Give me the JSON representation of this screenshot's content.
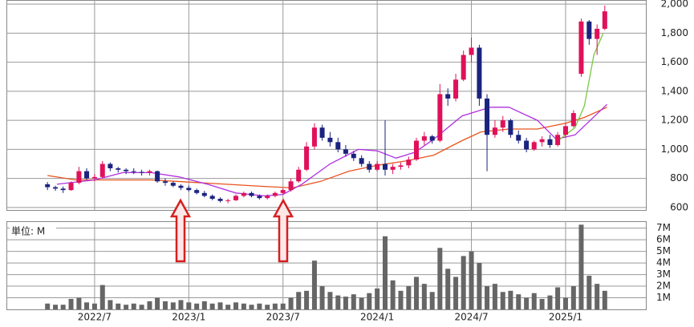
{
  "chart_data": {
    "type": "candlestick",
    "xlim": [
      2022.032,
      2025.426
    ],
    "xticks": [
      {
        "value": 2022.5,
        "label": "2022/7"
      },
      {
        "value": 2023.0,
        "label": "2023/1"
      },
      {
        "value": 2023.5,
        "label": "2023/7"
      },
      {
        "value": 2024.0,
        "label": "2024/1"
      },
      {
        "value": 2024.5,
        "label": "2024/7"
      },
      {
        "value": 2025.0,
        "label": "2025/1"
      }
    ],
    "ylim": [
      583,
      2028
    ],
    "yticks": [
      600,
      800,
      {
        "value": 1000,
        "label": "1,000"
      },
      {
        "value": 1200,
        "label": "1,200"
      },
      {
        "value": 1400,
        "label": "1,400"
      },
      {
        "value": 1600,
        "label": "1,600"
      },
      {
        "value": 1800,
        "label": "1,800"
      },
      {
        "value": 2000,
        "label": "2,000"
      }
    ],
    "grid": true,
    "up_color": "#e0105a",
    "down_color": "#1a237e",
    "x": [
      2022.25,
      2022.292,
      2022.333,
      2022.375,
      2022.417,
      2022.458,
      2022.5,
      2022.542,
      2022.583,
      2022.625,
      2022.667,
      2022.708,
      2022.75,
      2022.792,
      2022.833,
      2022.875,
      2022.917,
      2022.958,
      2023.0,
      2023.042,
      2023.083,
      2023.125,
      2023.167,
      2023.208,
      2023.25,
      2023.292,
      2023.333,
      2023.375,
      2023.417,
      2023.458,
      2023.5,
      2023.542,
      2023.583,
      2023.625,
      2023.667,
      2023.708,
      2023.75,
      2023.792,
      2023.833,
      2023.875,
      2023.917,
      2023.958,
      2024.0,
      2024.042,
      2024.083,
      2024.125,
      2024.167,
      2024.208,
      2024.25,
      2024.292,
      2024.333,
      2024.375,
      2024.417,
      2024.458,
      2024.5,
      2024.542,
      2024.583,
      2024.625,
      2024.667,
      2024.708,
      2024.75,
      2024.792,
      2024.833,
      2024.875,
      2024.917,
      2024.958,
      2025.0,
      2025.042,
      2025.083,
      2025.125,
      2025.167,
      2025.208
    ],
    "open": [
      760,
      740,
      730,
      720,
      770,
      850,
      800,
      810,
      900,
      870,
      860,
      850,
      845,
      840,
      850,
      780,
      770,
      750,
      735,
      720,
      700,
      680,
      660,
      645,
      650,
      680,
      700,
      680,
      665,
      680,
      700,
      720,
      780,
      860,
      1020,
      1150,
      1080,
      1050,
      1000,
      970,
      940,
      900,
      860,
      900,
      860,
      880,
      890,
      930,
      1060,
      1090,
      1060,
      1380,
      1350,
      1480,
      1650,
      1700,
      1350,
      1100,
      1150,
      1200,
      1100,
      1060,
      1000,
      1050,
      1070,
      1030,
      1100,
      1160,
      1520,
      1880,
      1760,
      1830
    ],
    "high": [
      775,
      750,
      745,
      780,
      880,
      870,
      830,
      920,
      910,
      880,
      870,
      870,
      860,
      860,
      855,
      800,
      780,
      760,
      750,
      730,
      715,
      690,
      670,
      660,
      690,
      710,
      710,
      690,
      690,
      710,
      730,
      800,
      880,
      1050,
      1180,
      1170,
      1120,
      1080,
      1030,
      990,
      960,
      920,
      920,
      1200,
      900,
      910,
      950,
      1080,
      1120,
      1100,
      1450,
      1420,
      1520,
      1680,
      1770,
      1720,
      1380,
      1200,
      1230,
      1210,
      1130,
      1080,
      1060,
      1090,
      1100,
      1120,
      1180,
      1270,
      1900,
      1890,
      1860,
      1990
    ],
    "low": [
      720,
      715,
      700,
      715,
      760,
      790,
      780,
      800,
      850,
      840,
      830,
      830,
      820,
      820,
      770,
      750,
      740,
      720,
      710,
      690,
      670,
      650,
      635,
      630,
      645,
      670,
      670,
      655,
      655,
      670,
      690,
      710,
      770,
      850,
      1000,
      1060,
      1020,
      980,
      950,
      920,
      880,
      840,
      850,
      820,
      830,
      860,
      870,
      920,
      1030,
      1040,
      1050,
      1300,
      1330,
      1470,
      1600,
      1300,
      850,
      1080,
      1120,
      1080,
      1040,
      980,
      990,
      1020,
      1010,
      1020,
      1080,
      1150,
      1500,
      1720,
      1650,
      1820
    ],
    "close": [
      740,
      730,
      720,
      770,
      850,
      800,
      810,
      900,
      870,
      860,
      850,
      845,
      840,
      850,
      780,
      770,
      750,
      735,
      720,
      700,
      680,
      660,
      645,
      650,
      680,
      700,
      680,
      665,
      680,
      700,
      720,
      780,
      860,
      1020,
      1150,
      1080,
      1050,
      1000,
      970,
      940,
      900,
      860,
      900,
      860,
      880,
      890,
      930,
      1060,
      1090,
      1060,
      1380,
      1350,
      1480,
      1650,
      1700,
      1350,
      1100,
      1150,
      1200,
      1100,
      1060,
      1000,
      1050,
      1070,
      1030,
      1100,
      1160,
      1250,
      1880,
      1760,
      1830,
      1950
    ],
    "moving_averages": [
      {
        "color": "#e8531f",
        "x": [
          2022.25,
          2022.4,
          2022.6,
          2022.8,
          2023.0,
          2023.2,
          2023.4,
          2023.55,
          2023.7,
          2023.85,
          2024.0,
          2024.15,
          2024.3,
          2024.45,
          2024.55,
          2024.7,
          2024.85,
          2025.0,
          2025.1,
          2025.22
        ],
        "values": [
          820,
          790,
          790,
          790,
          775,
          760,
          745,
          735,
          780,
          850,
          890,
          920,
          960,
          1060,
          1120,
          1140,
          1140,
          1180,
          1220,
          1290
        ]
      },
      {
        "color": "#b030e0",
        "x": [
          2022.3,
          2022.5,
          2022.65,
          2022.8,
          2022.95,
          2023.1,
          2023.25,
          2023.4,
          2023.5,
          2023.6,
          2023.75,
          2023.9,
          2024.0,
          2024.1,
          2024.2,
          2024.3,
          2024.45,
          2024.6,
          2024.7,
          2024.85,
          2024.95,
          2025.05,
          2025.22
        ],
        "values": [
          760,
          790,
          840,
          840,
          810,
          760,
          700,
          680,
          690,
          760,
          900,
          1000,
          990,
          940,
          980,
          1070,
          1230,
          1290,
          1290,
          1200,
          1070,
          1100,
          1310
        ]
      },
      {
        "color": "#7ac943",
        "x": [
          2024.95,
          2025.05,
          2025.1,
          2025.15,
          2025.2
        ],
        "values": [
          1050,
          1150,
          1300,
          1650,
          1800
        ]
      }
    ],
    "volume": {
      "label": "単位: M",
      "color": "#666666",
      "ylim": [
        0,
        7.6
      ],
      "yticks": [
        {
          "value": 1,
          "label": "1M"
        },
        {
          "value": 2,
          "label": "2M"
        },
        {
          "value": 3,
          "label": "3M"
        },
        {
          "value": 4,
          "label": "4M"
        },
        {
          "value": 5,
          "label": "5M"
        },
        {
          "value": 6,
          "label": "6M"
        },
        {
          "value": 7,
          "label": "7M"
        }
      ],
      "values": [
        0.5,
        0.4,
        0.4,
        0.9,
        1.0,
        0.6,
        0.5,
        2.1,
        0.8,
        0.5,
        0.4,
        0.5,
        0.4,
        0.7,
        1.0,
        0.7,
        0.6,
        0.8,
        0.6,
        0.5,
        0.7,
        0.5,
        0.6,
        0.4,
        0.6,
        0.5,
        0.4,
        0.5,
        0.4,
        0.5,
        0.5,
        1.0,
        1.5,
        1.6,
        4.2,
        2.0,
        1.5,
        1.2,
        1.1,
        1.3,
        1.0,
        1.4,
        1.8,
        6.3,
        2.5,
        1.6,
        2.0,
        2.8,
        2.2,
        1.5,
        5.3,
        3.5,
        2.8,
        4.6,
        5.0,
        4.0,
        2.0,
        2.2,
        1.5,
        1.6,
        1.3,
        1.0,
        1.4,
        0.9,
        1.2,
        1.9,
        1.0,
        2.0,
        7.3,
        2.9,
        2.2,
        1.6
      ]
    }
  }
}
